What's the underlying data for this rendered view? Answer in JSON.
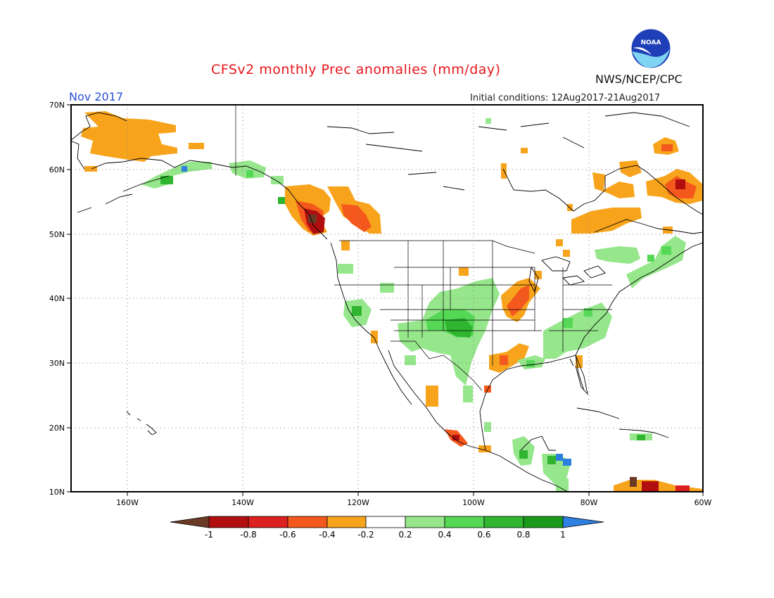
{
  "header": {
    "title": "CFSv2 monthly Prec anomalies (mm/day)",
    "month": "Nov 2017",
    "initial_conditions": "Initial conditions: 12Aug2017-21Aug2017",
    "org": "NWS/NCEP/CPC",
    "logo_text": "NOAA"
  },
  "map": {
    "lon_range": [
      -170,
      -60
    ],
    "lat_range": [
      10,
      70
    ],
    "lat_labels": [
      "70N",
      "60N",
      "50N",
      "40N",
      "30N",
      "20N",
      "10N"
    ],
    "lon_labels": [
      "160W",
      "140W",
      "120W",
      "100W",
      "80W",
      "60W"
    ]
  },
  "colorbar": {
    "labels": [
      "-1",
      "-0.8",
      "-0.6",
      "-0.4",
      "-0.2",
      "0.2",
      "0.4",
      "0.6",
      "0.8",
      "1"
    ],
    "colors": {
      "lt_m1": "#6b3a25",
      "m1_m08": "#b10f0f",
      "m08_m06": "#dc1f1f",
      "m06_m04": "#f5581c",
      "m04_m02": "#f7a41c",
      "m02_02": "#ffffff",
      "02_04": "#96e68c",
      "04_06": "#55d855",
      "06_08": "#2fb52f",
      "08_1": "#1a9a1a",
      "gt_1": "#2d7fe0"
    }
  }
}
